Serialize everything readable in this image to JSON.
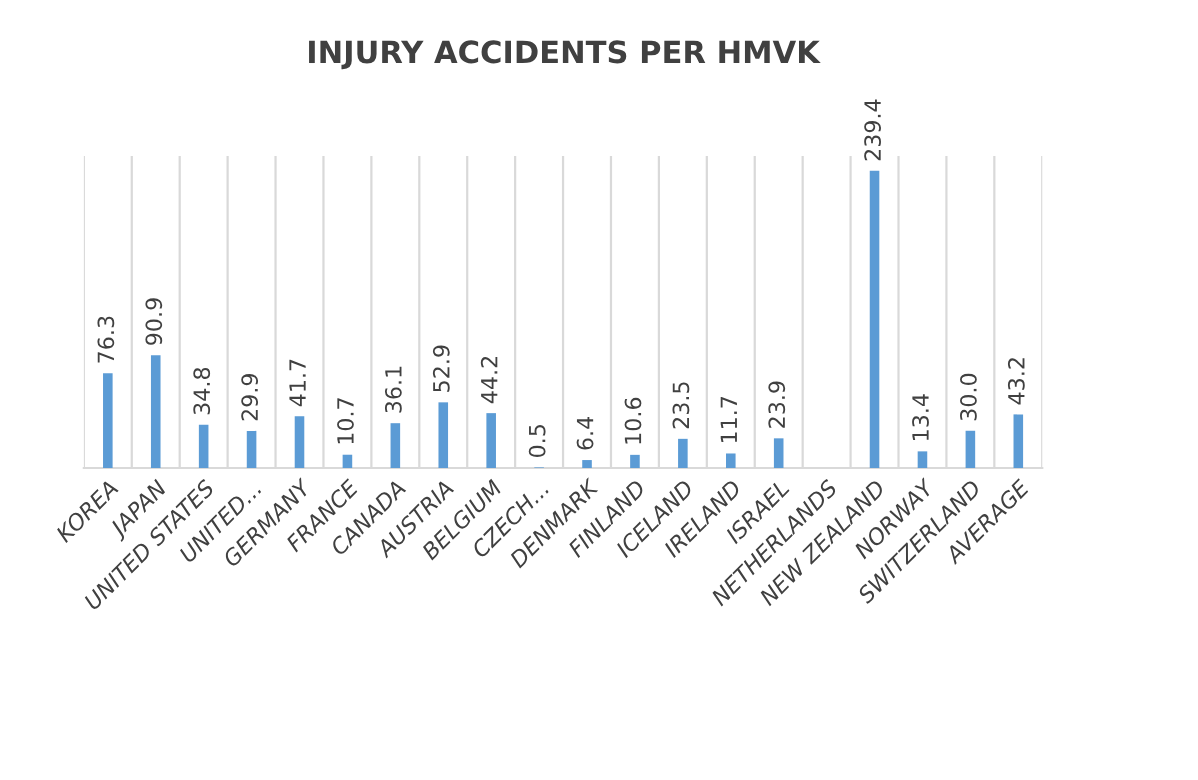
{
  "chart_data": {
    "type": "bar",
    "title": "INJURY ACCIDENTS PER HMVK",
    "categories": [
      "KOREA",
      "JAPAN",
      "UNITED STATES",
      "UNITED...",
      "GERMANY",
      "FRANCE",
      "CANADA",
      "AUSTRIA",
      "BELGIUM",
      "CZECH...",
      "DENMARK",
      "FINLAND",
      "ICELAND",
      "IRELAND",
      "ISRAEL",
      "NETHERLANDS",
      "NEW ZEALAND",
      "NORWAY",
      "SWITZERLAND",
      "AVERAGE"
    ],
    "values": [
      76.3,
      90.9,
      34.8,
      29.9,
      41.7,
      10.7,
      36.1,
      52.9,
      44.2,
      0.5,
      6.4,
      10.6,
      23.5,
      11.7,
      23.9,
      null,
      239.4,
      13.4,
      30.0,
      43.2
    ],
    "value_labels": [
      "76.3",
      "90.9",
      "34.8",
      "29.9",
      "41.7",
      "10.7",
      "36.1",
      "52.9",
      "44.2",
      "0.5",
      "6.4",
      "10.6",
      "23.5",
      "11.7",
      "23.9",
      null,
      "239.4",
      "13.4",
      "30.0",
      "43.2"
    ],
    "color": "#5b9bd5",
    "grid": "x"
  }
}
